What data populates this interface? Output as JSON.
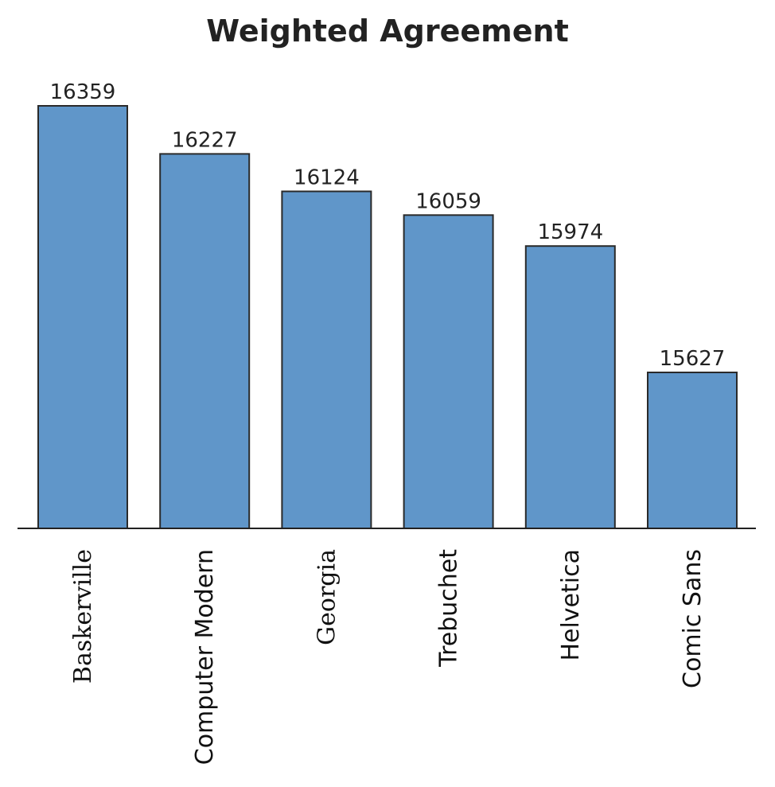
{
  "chart_data": {
    "type": "bar",
    "title": "Weighted Agreement",
    "xlabel": "",
    "ylabel": "",
    "categories": [
      "Baskerville",
      "Computer Modern",
      "Georgia",
      "Trebuchet",
      "Helvetica",
      "Comic Sans"
    ],
    "values": [
      16359,
      16227,
      16124,
      16059,
      15974,
      15627
    ],
    "data_labels": [
      "16359",
      "16227",
      "16124",
      "16059",
      "15974",
      "15627"
    ],
    "category_styles": [
      "serif",
      "sans",
      "serif",
      "sans",
      "sans",
      "sans"
    ],
    "bar_color": "#6096c9",
    "axis_visible": false,
    "grid": false
  }
}
